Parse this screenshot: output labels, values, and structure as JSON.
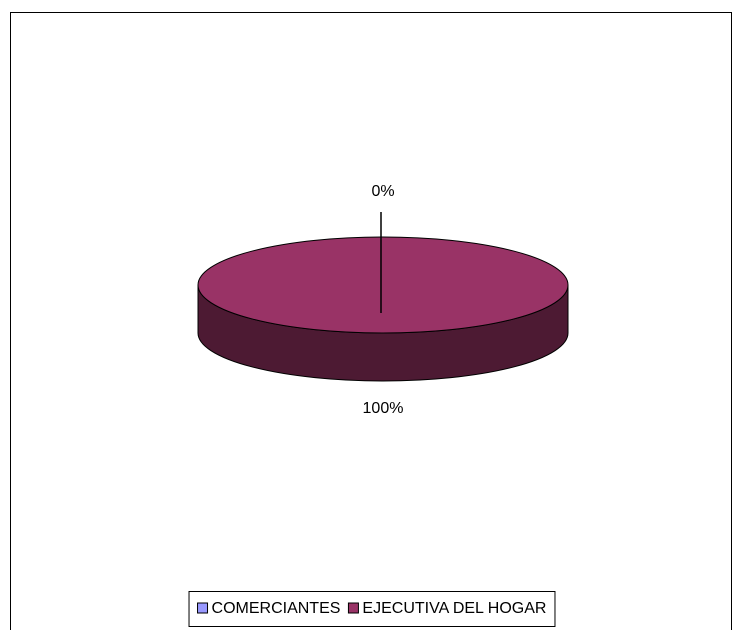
{
  "chart_data": {
    "type": "pie",
    "categories": [
      "COMERCIANTES",
      "EJECUTIVA DEL HOGAR"
    ],
    "values": [
      0,
      100
    ],
    "value_labels": [
      "0%",
      "100%"
    ],
    "colors": [
      "#9999ff",
      "#993366"
    ],
    "legend": "bottom"
  }
}
